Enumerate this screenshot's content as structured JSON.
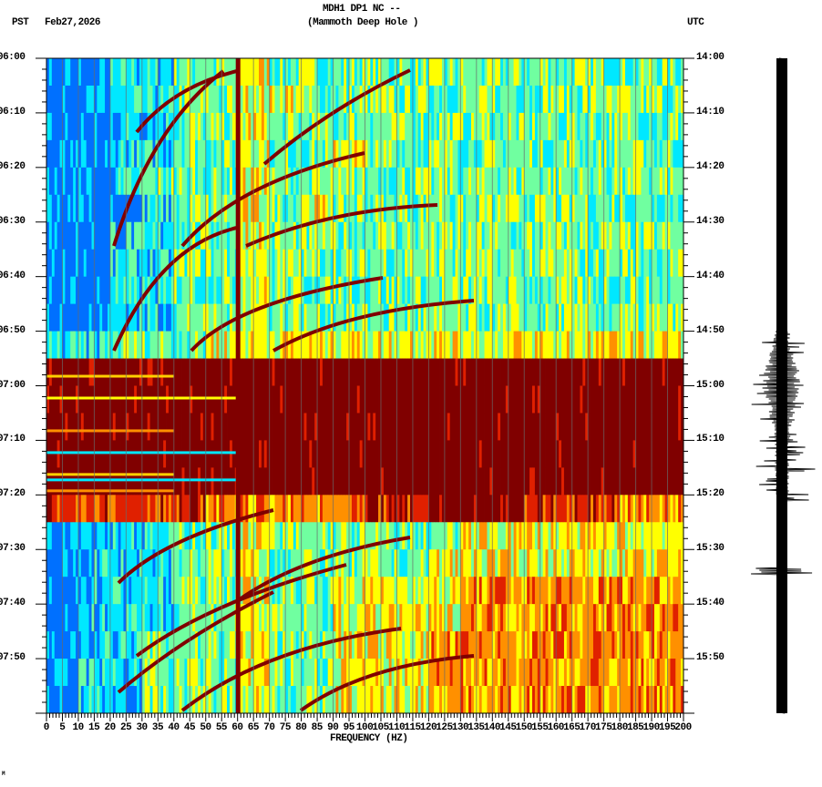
{
  "header": {
    "station": "MDH1 DP1 NC --",
    "location": "(Mammoth Deep Hole )",
    "left_tz": "PST",
    "date": "Feb27,2026",
    "right_tz": "UTC"
  },
  "footer_mark": "M",
  "chart_data": {
    "type": "heatmap",
    "title": "MDH1 DP1 NC -- (Mammoth Deep Hole )",
    "xlabel": "FREQUENCY (HZ)",
    "xlim": [
      0,
      200
    ],
    "x_ticks": [
      "0",
      "5",
      "10",
      "15",
      "20",
      "25",
      "30",
      "35",
      "40",
      "45",
      "50",
      "55",
      "60",
      "65",
      "70",
      "75",
      "80",
      "85",
      "90",
      "95",
      "100",
      "105",
      "110",
      "115",
      "120",
      "125",
      "130",
      "135",
      "140",
      "145",
      "150",
      "155",
      "160",
      "165",
      "170",
      "175",
      "180",
      "185",
      "190",
      "195",
      "200"
    ],
    "ylim_minutes": [
      0,
      120
    ],
    "y_ticks_left": [
      "06:00",
      "06:10",
      "06:20",
      "06:30",
      "06:40",
      "06:50",
      "07:00",
      "07:10",
      "07:20",
      "07:30",
      "07:40",
      "07:50"
    ],
    "y_ticks_right": [
      "14:00",
      "14:10",
      "14:20",
      "14:30",
      "14:40",
      "14:50",
      "15:00",
      "15:10",
      "15:20",
      "15:30",
      "15:40",
      "15:50"
    ],
    "grid": "vertical lines every 5 Hz",
    "persistent_line_hz": 60,
    "row_minutes": 5,
    "col_hz": 10,
    "color_scale": [
      "#0070ff",
      "#00e8ff",
      "#70ffa0",
      "#ffff00",
      "#ff9000",
      "#e02000",
      "#800000"
    ],
    "intensity": [
      [
        0,
        0,
        1,
        1,
        2,
        2,
        3,
        2,
        2,
        2,
        2,
        2,
        2,
        2,
        2,
        2,
        2,
        2,
        2,
        2
      ],
      [
        0,
        0,
        1,
        1,
        2,
        2,
        3,
        3,
        2,
        2,
        2,
        2,
        2,
        2,
        2,
        2,
        2,
        2,
        2,
        2
      ],
      [
        0,
        0,
        1,
        1,
        2,
        2,
        3,
        2,
        2,
        2,
        2,
        2,
        2,
        2,
        2,
        2,
        2,
        2,
        2,
        2
      ],
      [
        0,
        0,
        1,
        1,
        2,
        2,
        3,
        2,
        2,
        3,
        2,
        2,
        2,
        2,
        2,
        2,
        2,
        2,
        2,
        2
      ],
      [
        0,
        0,
        1,
        2,
        2,
        2,
        3,
        2,
        2,
        2,
        2,
        2,
        2,
        2,
        2,
        2,
        2,
        2,
        2,
        2
      ],
      [
        0,
        0,
        0,
        1,
        2,
        2,
        3,
        2,
        3,
        2,
        2,
        2,
        2,
        2,
        2,
        2,
        2,
        2,
        2,
        2
      ],
      [
        0,
        0,
        1,
        1,
        2,
        2,
        3,
        2,
        2,
        2,
        2,
        2,
        2,
        2,
        2,
        2,
        2,
        2,
        2,
        2
      ],
      [
        0,
        0,
        1,
        1,
        2,
        2,
        3,
        2,
        2,
        2,
        2,
        2,
        2,
        2,
        2,
        2,
        2,
        2,
        2,
        2
      ],
      [
        0,
        0,
        1,
        1,
        2,
        2,
        3,
        2,
        2,
        2,
        2,
        2,
        2,
        2,
        2,
        2,
        2,
        2,
        2,
        2
      ],
      [
        0,
        0,
        1,
        1,
        2,
        2,
        3,
        2,
        2,
        2,
        2,
        2,
        2,
        2,
        2,
        2,
        2,
        2,
        2,
        2
      ],
      [
        1,
        1,
        2,
        2,
        2,
        3,
        3,
        3,
        3,
        3,
        3,
        3,
        3,
        3,
        3,
        3,
        3,
        3,
        3,
        3
      ],
      [
        6,
        6,
        6,
        6,
        6,
        6,
        6,
        6,
        6,
        6,
        6,
        6,
        6,
        6,
        6,
        6,
        6,
        6,
        6,
        6
      ],
      [
        6,
        6,
        6,
        6,
        6,
        6,
        6,
        6,
        6,
        6,
        6,
        6,
        6,
        6,
        6,
        6,
        6,
        6,
        6,
        6
      ],
      [
        6,
        6,
        6,
        6,
        6,
        6,
        6,
        6,
        6,
        6,
        6,
        6,
        6,
        6,
        6,
        6,
        6,
        6,
        6,
        6
      ],
      [
        6,
        6,
        6,
        6,
        6,
        6,
        6,
        6,
        6,
        6,
        6,
        6,
        6,
        6,
        6,
        6,
        6,
        6,
        6,
        6
      ],
      [
        6,
        6,
        6,
        6,
        6,
        6,
        6,
        6,
        6,
        6,
        6,
        6,
        6,
        6,
        6,
        6,
        6,
        6,
        6,
        6
      ],
      [
        5,
        5,
        5,
        5,
        5,
        4,
        4,
        4,
        4,
        4,
        5,
        5,
        6,
        6,
        6,
        5,
        5,
        5,
        4,
        4
      ],
      [
        1,
        1,
        1,
        1,
        2,
        2,
        3,
        2,
        2,
        2,
        2,
        2,
        2,
        3,
        3,
        3,
        3,
        3,
        3,
        3
      ],
      [
        0,
        1,
        1,
        1,
        2,
        2,
        3,
        2,
        2,
        2,
        2,
        2,
        3,
        3,
        3,
        3,
        3,
        3,
        3,
        3
      ],
      [
        0,
        1,
        1,
        1,
        2,
        2,
        3,
        2,
        2,
        3,
        3,
        3,
        3,
        4,
        4,
        4,
        4,
        4,
        4,
        4
      ],
      [
        0,
        1,
        1,
        1,
        2,
        2,
        3,
        2,
        2,
        3,
        3,
        3,
        3,
        4,
        4,
        4,
        4,
        4,
        4,
        4
      ],
      [
        0,
        1,
        1,
        2,
        2,
        2,
        3,
        2,
        2,
        3,
        3,
        3,
        4,
        4,
        4,
        4,
        4,
        4,
        4,
        4
      ],
      [
        0,
        1,
        1,
        2,
        2,
        2,
        3,
        2,
        2,
        3,
        3,
        3,
        4,
        4,
        4,
        4,
        4,
        4,
        4,
        4
      ],
      [
        0,
        1,
        1,
        2,
        2,
        2,
        3,
        2,
        2,
        3,
        3,
        3,
        4,
        4,
        4,
        4,
        4,
        4,
        4,
        4
      ]
    ]
  }
}
